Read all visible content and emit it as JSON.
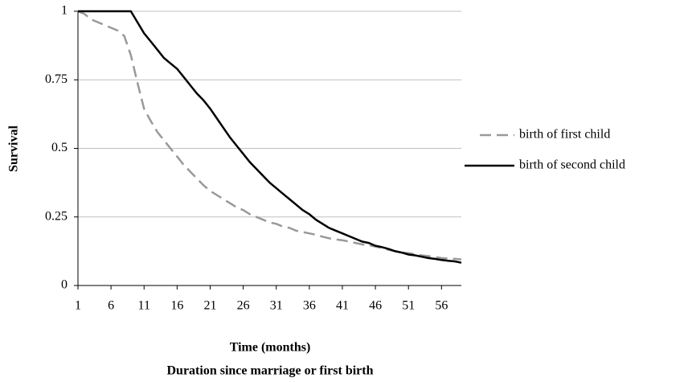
{
  "chart_data": {
    "type": "line",
    "ylabel": "Survival",
    "xlabel": [
      "Time (months)",
      "Duration since marriage or first birth"
    ],
    "x": [
      1,
      2,
      3,
      4,
      5,
      6,
      7,
      8,
      9,
      10,
      11,
      12,
      13,
      14,
      15,
      16,
      17,
      18,
      19,
      20,
      21,
      22,
      23,
      24,
      25,
      26,
      27,
      28,
      29,
      30,
      31,
      32,
      33,
      34,
      35,
      36,
      37,
      38,
      39,
      40,
      41,
      42,
      43,
      44,
      45,
      46,
      47,
      48,
      49,
      50,
      51,
      52,
      53,
      54,
      55,
      56,
      57,
      58,
      59
    ],
    "xlim": [
      1,
      59
    ],
    "xticks": [
      1,
      6,
      11,
      16,
      21,
      26,
      31,
      36,
      41,
      46,
      51,
      56
    ],
    "ylim": [
      0,
      1
    ],
    "yticks": [
      0,
      0.25,
      0.5,
      0.75,
      1
    ],
    "grid": true,
    "legend": "right",
    "series": [
      {
        "name": "birth of first child",
        "color": "#999999",
        "dashed": true,
        "values": [
          1,
          0.99,
          0.97,
          0.96,
          0.95,
          0.94,
          0.93,
          0.91,
          0.84,
          0.74,
          0.645,
          0.6,
          0.56,
          0.53,
          0.5,
          0.47,
          0.44,
          0.415,
          0.39,
          0.365,
          0.345,
          0.33,
          0.315,
          0.3,
          0.285,
          0.275,
          0.26,
          0.25,
          0.24,
          0.23,
          0.225,
          0.215,
          0.21,
          0.2,
          0.195,
          0.19,
          0.185,
          0.178,
          0.172,
          0.168,
          0.165,
          0.16,
          0.155,
          0.15,
          0.147,
          0.142,
          0.137,
          0.13,
          0.125,
          0.12,
          0.118,
          0.114,
          0.11,
          0.107,
          0.104,
          0.1,
          0.098,
          0.097,
          0.095
        ]
      },
      {
        "name": "birth of second child",
        "color": "#000000",
        "dashed": false,
        "values": [
          1,
          1,
          1,
          1,
          1,
          1,
          1,
          1,
          1,
          0.96,
          0.92,
          0.89,
          0.86,
          0.83,
          0.81,
          0.79,
          0.76,
          0.73,
          0.7,
          0.675,
          0.645,
          0.61,
          0.575,
          0.54,
          0.51,
          0.48,
          0.45,
          0.425,
          0.4,
          0.375,
          0.355,
          0.335,
          0.315,
          0.295,
          0.275,
          0.26,
          0.24,
          0.225,
          0.21,
          0.2,
          0.19,
          0.18,
          0.17,
          0.16,
          0.155,
          0.145,
          0.14,
          0.133,
          0.125,
          0.12,
          0.113,
          0.11,
          0.105,
          0.1,
          0.097,
          0.093,
          0.09,
          0.088,
          0.083
        ]
      }
    ]
  }
}
